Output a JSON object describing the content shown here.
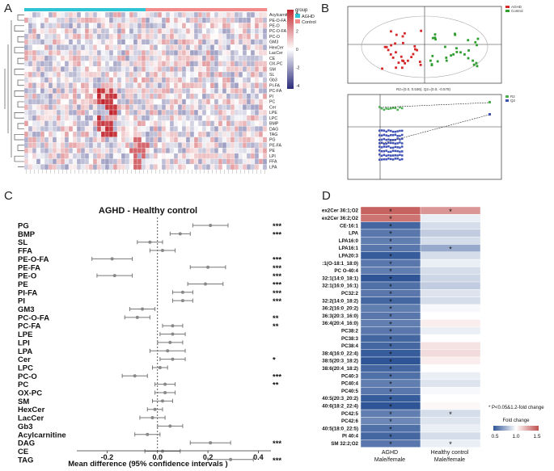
{
  "panel_letters": [
    "A",
    "B",
    "C",
    "D"
  ],
  "heatmap": {
    "legend_title": "group",
    "legend_groups": [
      {
        "name": "AGHD",
        "color": "#2ec4d6"
      },
      {
        "name": "Control",
        "color": "#f28b8b"
      }
    ],
    "colorbar_ticks": [
      "4",
      "2",
      "0",
      "-2",
      "-4"
    ],
    "rows": [
      "Acylcarnitine",
      "PE-O-FA",
      "PE-O",
      "PC-O-FA",
      "PC-O",
      "GM3",
      "HexCer",
      "LacCer",
      "CE",
      "OX-PC",
      "SM",
      "SL",
      "Gb3",
      "PI-FA",
      "PC-FA",
      "PI",
      "PC",
      "Cer",
      "LPE",
      "LPC",
      "BMP",
      "DAG",
      "TAG",
      "PG",
      "PE-FA",
      "PE",
      "LPI",
      "FFA",
      "LPA"
    ],
    "n_cols": 60
  },
  "pls": {
    "legend": [
      "AGHD",
      "Control"
    ],
    "legend_colors": [
      "#d62728",
      "#2e9e2e"
    ],
    "stat_text": "R2=(0.0, 0.536), Q2=(0.0, -0.578)",
    "perm_legend": [
      "R2",
      "Q2"
    ],
    "perm_colors": [
      "#4caf50",
      "#3f51b5"
    ]
  },
  "forest": {
    "title": "AGHD - Healthy control",
    "xlabel": "Mean difference (95% confidence intervals )",
    "xticks": [
      "-0.2",
      "0.0",
      "0.2",
      "0.4"
    ],
    "chart_data": {
      "type": "forest",
      "title": "AGHD - Healthy control",
      "xlabel": "Mean difference (95% confidence intervals )",
      "xlim": [
        -0.32,
        0.45
      ],
      "categories": [
        "PG",
        "BMP",
        "SL",
        "FFA",
        "PE-O-FA",
        "PE-FA",
        "PE-O",
        "PE",
        "PI-FA",
        "PI",
        "GM3",
        "PC-O-FA",
        "PC-FA",
        "LPE",
        "LPI",
        "LPA",
        "Cer",
        "LPC",
        "PC-O",
        "PC",
        "OX-PC",
        "SM",
        "HexCer",
        "LacCer",
        "Gb3",
        "Acylcarnitine",
        "DAG",
        "CE",
        "TAG"
      ],
      "estimates": [
        0.21,
        0.09,
        -0.03,
        0.02,
        -0.18,
        0.2,
        -0.17,
        0.19,
        0.1,
        0.1,
        -0.06,
        -0.08,
        0.06,
        0.06,
        0.05,
        0.04,
        0.06,
        0.01,
        -0.09,
        0.03,
        0.03,
        0.02,
        -0.01,
        -0.02,
        0.05,
        -0.04,
        0.21,
        0.02,
        0.29
      ],
      "lower": [
        0.14,
        0.05,
        -0.08,
        -0.03,
        -0.26,
        0.13,
        -0.24,
        0.12,
        0.06,
        0.06,
        -0.11,
        -0.13,
        0.02,
        0.01,
        0.0,
        -0.03,
        0.01,
        -0.02,
        -0.14,
        -0.01,
        -0.01,
        -0.02,
        -0.04,
        -0.07,
        0.0,
        -0.09,
        0.13,
        -0.05,
        0.2
      ],
      "upper": [
        0.28,
        0.13,
        0.02,
        0.07,
        -0.1,
        0.27,
        -0.1,
        0.26,
        0.14,
        0.14,
        -0.01,
        -0.03,
        0.1,
        0.11,
        0.1,
        0.11,
        0.11,
        0.04,
        -0.04,
        0.07,
        0.07,
        0.06,
        0.02,
        0.03,
        0.1,
        0.01,
        0.29,
        0.09,
        0.38
      ],
      "significance": [
        "***",
        "***",
        "",
        "",
        "***",
        "***",
        "***",
        "***",
        "***",
        "***",
        "",
        "**",
        "**",
        "",
        "",
        "",
        "*",
        "",
        "***",
        "**",
        "",
        "",
        "",
        "",
        "",
        "",
        "***",
        "",
        "***"
      ]
    }
  },
  "fold": {
    "rows": [
      "NeuAcHex2Cer 36:1;O2",
      "NeuAcHex2Cer 36:2;O2",
      "CE-16:1",
      "LPA",
      "LPA16:0",
      "LPA16:1",
      "LPA20:3",
      "PC O-36:1(O-18:1_18:0)",
      "PC O-40:4",
      "PC32:1(14:0_18:1)",
      "PC32:1(16:0_16:1)",
      "PC32:2",
      "PC32:2(14:0_18:2)",
      "PC36:2(16:0_20:2)",
      "PC36:3(20:3_16:0)",
      "PC36:4(20:4_16:0)",
      "PC38:2",
      "PC38:3",
      "PC38:4",
      "PC38:4(16:0_22:4)",
      "PC38:5(20:3_18:2)",
      "PC38:6(20:4_18:2)",
      "PC40:3",
      "PC40:4",
      "PC40:5",
      "PC40:5(20:3_20:2)",
      "PC40:6(18:2_22:4)",
      "PC42:5",
      "PC42:6",
      "PE40:5(18:0_22:5)",
      "PI 40:4",
      "SM 32:2;O2"
    ],
    "aghd": [
      1.45,
      1.4,
      0.55,
      0.6,
      0.62,
      0.6,
      0.52,
      0.6,
      0.62,
      0.5,
      0.58,
      0.6,
      0.55,
      0.62,
      0.6,
      0.62,
      0.6,
      0.55,
      0.55,
      0.52,
      0.5,
      0.55,
      0.58,
      0.62,
      0.6,
      0.52,
      0.5,
      0.62,
      0.65,
      0.58,
      0.55,
      0.6
    ],
    "control": [
      1.3,
      0.95,
      0.9,
      0.85,
      0.9,
      0.75,
      0.9,
      0.95,
      0.9,
      0.88,
      0.85,
      0.92,
      0.9,
      0.98,
      1.0,
      1.05,
      0.95,
      1.0,
      1.08,
      1.1,
      1.05,
      1.0,
      0.95,
      0.92,
      0.98,
      1.0,
      1.02,
      0.9,
      0.92,
      0.95,
      0.9,
      0.95
    ],
    "aghd_stars": [
      "*",
      "*",
      "*",
      "*",
      "*",
      "*",
      "*",
      "*",
      "*",
      "*",
      "*",
      "*",
      "*",
      "*",
      "*",
      "*",
      "*",
      "*",
      "*",
      "*",
      "*",
      "*",
      "*",
      "*",
      "*",
      "*",
      "*",
      "*",
      "*",
      "*",
      "*",
      "*"
    ],
    "control_stars": [
      "*",
      "",
      "",
      "",
      "",
      "*",
      "",
      "",
      "",
      "",
      "",
      "",
      "",
      "",
      "",
      "",
      "",
      "",
      "",
      "",
      "",
      "",
      "",
      "",
      "",
      "",
      "",
      "*",
      "",
      "",
      "",
      "*"
    ],
    "col_label_1a": "AGHD",
    "col_label_1b": "Male/female",
    "col_label_2a": "Healthy control",
    "col_label_2b": "Male/female",
    "note": "* P<0.05&1.2-fold change",
    "legend_title": "Fold change",
    "legend_ticks": [
      "0.5",
      "1.0",
      "1.5"
    ]
  }
}
